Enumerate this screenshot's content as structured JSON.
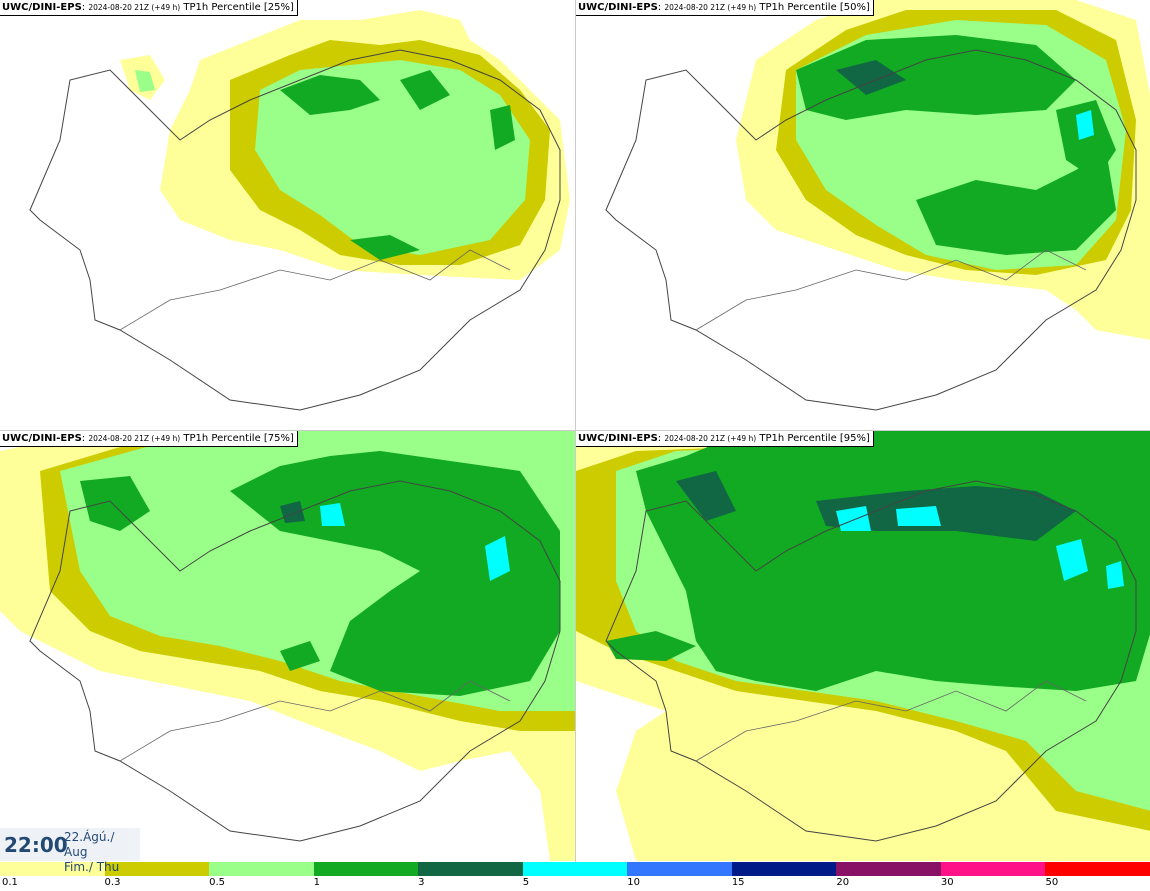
{
  "panels": [
    {
      "model": "UWC/DINI-EPS",
      "run": "2024-08-20 21Z (+49 h)",
      "title": "TP1h Percentile [25%]"
    },
    {
      "model": "UWC/DINI-EPS",
      "run": "2024-08-20 21Z (+49 h)",
      "title": "TP1h Percentile [50%]"
    },
    {
      "model": "UWC/DINI-EPS",
      "run": "2024-08-20 21Z (+49 h)",
      "title": "TP1h Percentile [75%]"
    },
    {
      "model": "UWC/DINI-EPS",
      "run": "2024-08-20 21Z (+49 h)",
      "title": "TP1h Percentile [95%]"
    }
  ],
  "time": {
    "clock": "22:00",
    "date": "22.Ágú./ Aug",
    "day": "Fim./ Thu"
  },
  "legend": {
    "colors": [
      "#ffff99",
      "#cccc00",
      "#99ff88",
      "#11aa22",
      "#116644",
      "#00ffff",
      "#3377ff",
      "#001a88",
      "#881166",
      "#ff1188",
      "#ff0000"
    ],
    "ticks": [
      "0.1",
      "0.3",
      "0.5",
      "1",
      "3",
      "5",
      "10",
      "15",
      "20",
      "30",
      "50"
    ]
  },
  "palette": {
    "land_outline": "#444444",
    "background": "#ffffff"
  }
}
